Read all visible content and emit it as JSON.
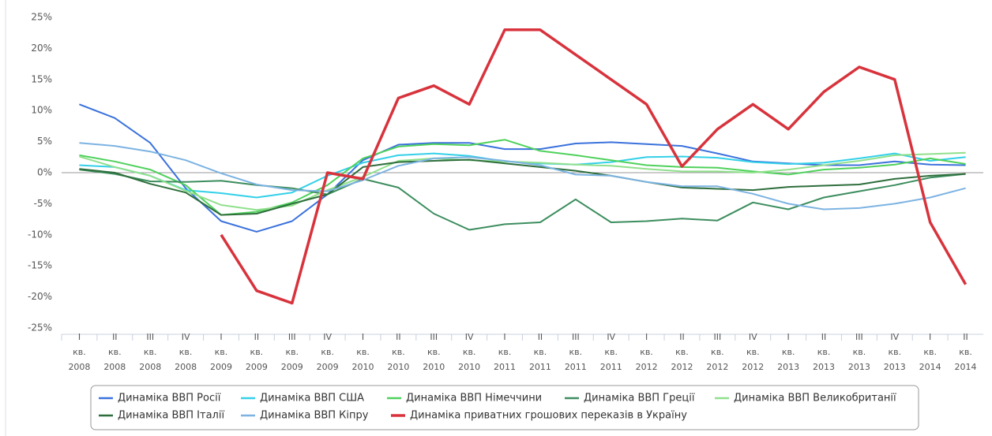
{
  "chart_data": {
    "type": "line",
    "categories": [
      [
        "I",
        "кв.",
        "2008"
      ],
      [
        "II",
        "кв.",
        "2008"
      ],
      [
        "III",
        "кв.",
        "2008"
      ],
      [
        "IV",
        "кв.",
        "2008"
      ],
      [
        "I",
        "кв.",
        "2009"
      ],
      [
        "II",
        "кв.",
        "2009"
      ],
      [
        "III",
        "кв.",
        "2009"
      ],
      [
        "IV",
        "кв.",
        "2009"
      ],
      [
        "I",
        "кв.",
        "2010"
      ],
      [
        "II",
        "кв.",
        "2010"
      ],
      [
        "III",
        "кв.",
        "2010"
      ],
      [
        "IV",
        "кв.",
        "2010"
      ],
      [
        "I",
        "кв.",
        "2011"
      ],
      [
        "II",
        "кв.",
        "2011"
      ],
      [
        "III",
        "кв.",
        "2011"
      ],
      [
        "IV",
        "кв.",
        "2011"
      ],
      [
        "I",
        "кв.",
        "2012"
      ],
      [
        "II",
        "кв.",
        "2012"
      ],
      [
        "III",
        "кв.",
        "2012"
      ],
      [
        "IV",
        "кв.",
        "2012"
      ],
      [
        "I",
        "кв.",
        "2013"
      ],
      [
        "II",
        "кв.",
        "2013"
      ],
      [
        "III",
        "кв.",
        "2013"
      ],
      [
        "IV",
        "кв.",
        "2013"
      ],
      [
        "I",
        "кв.",
        "2014"
      ],
      [
        "II",
        "кв.",
        "2014"
      ]
    ],
    "series": [
      {
        "name": "Динаміка ВВП Росії",
        "color": "#3b72dc",
        "values": [
          11,
          8.8,
          4.8,
          -2.5,
          -7.8,
          -9.5,
          -7.8,
          -3.5,
          2,
          4.5,
          4.8,
          4.8,
          3.8,
          3.8,
          4.7,
          4.9,
          4.6,
          4.3,
          3.1,
          1.8,
          1.5,
          1.2,
          1.2,
          1.8,
          1.3,
          1.2
        ]
      },
      {
        "name": "Динаміка ВВП США",
        "color": "#33d0e8",
        "values": [
          1.2,
          0.9,
          -0.5,
          -2.8,
          -3.3,
          -4,
          -3.2,
          -0.5,
          1.6,
          2.8,
          3.1,
          2.7,
          1.8,
          1.5,
          1.3,
          1.7,
          2.5,
          2.6,
          2.4,
          1.7,
          1.4,
          1.6,
          2.3,
          3.1,
          1.9,
          2.5
        ]
      },
      {
        "name": "Динаміка ВВП Німеччини",
        "color": "#4fd15c",
        "values": [
          2.8,
          1.8,
          0.5,
          -2,
          -6.8,
          -6.3,
          -4.8,
          -2,
          2.3,
          4.2,
          4.6,
          4.4,
          5.3,
          3.5,
          2.8,
          2,
          1.2,
          0.9,
          0.8,
          0.2,
          -0.3,
          0.5,
          0.8,
          1.3,
          2.3,
          1.4
        ]
      },
      {
        "name": "Динаміка ВВП Греції",
        "color": "#3c8d5e",
        "values": [
          0.5,
          -0.2,
          -1.4,
          -1.5,
          -1.3,
          -2,
          -2.5,
          -3.5,
          -1,
          -2.4,
          -6.6,
          -9.2,
          -8.3,
          -8,
          -4.3,
          -8,
          -7.8,
          -7.4,
          -7.7,
          -4.8,
          -5.9,
          -4,
          -3,
          -2,
          -0.8,
          -0.2
        ]
      },
      {
        "name": "Динаміка ВВП Великобританії",
        "color": "#90e08c",
        "values": [
          2.6,
          0.9,
          -0.5,
          -2.9,
          -5.2,
          -6,
          -5.3,
          -2.8,
          -0.7,
          1.9,
          2.3,
          2,
          1.8,
          1.6,
          1.3,
          1.1,
          0.6,
          0.2,
          0.2,
          0,
          0.5,
          1.2,
          1.9,
          2.8,
          3,
          3.2
        ]
      },
      {
        "name": "Динаміка ВВП Італії",
        "color": "#2e6e3c",
        "values": [
          0.6,
          0,
          -1.8,
          -3.2,
          -6.8,
          -6.6,
          -5,
          -3.5,
          0.9,
          1.7,
          1.9,
          2.1,
          1.5,
          0.9,
          0.3,
          -0.5,
          -1.5,
          -2.4,
          -2.6,
          -2.8,
          -2.3,
          -2.1,
          -1.9,
          -1,
          -0.5,
          -0.2
        ]
      },
      {
        "name": "Динаміка ВВП Кіпру",
        "color": "#7cb3e2",
        "values": [
          4.8,
          4.3,
          3.4,
          2,
          -0.1,
          -1.9,
          -2.8,
          -3,
          -1.2,
          1.1,
          2.3,
          2.5,
          1.9,
          1.2,
          -0.3,
          -0.5,
          -1.5,
          -2.2,
          -2.2,
          -3.4,
          -5,
          -5.9,
          -5.7,
          -5,
          -4,
          -2.5
        ]
      },
      {
        "name": "Динаміка приватних грошових переказів в Україну",
        "color": "#d8333c",
        "values": [
          null,
          null,
          null,
          null,
          -10,
          -19,
          -21,
          0,
          -1,
          12,
          14,
          11,
          23,
          23,
          19,
          15,
          11,
          1,
          7,
          11,
          7,
          13,
          17,
          15,
          -8,
          -18
        ]
      }
    ],
    "ylim": [
      -25,
      25
    ],
    "yticks": [
      {
        "value": 25,
        "label": "25%"
      },
      {
        "value": 20,
        "label": "20%"
      },
      {
        "value": 15,
        "label": "15%"
      },
      {
        "value": 10,
        "label": "10%"
      },
      {
        "value": 5,
        "label": "5%"
      },
      {
        "value": 0,
        "label": "0%"
      },
      {
        "value": -5,
        "label": "-5%"
      },
      {
        "value": -10,
        "label": "-10%"
      },
      {
        "value": -15,
        "label": "-15%"
      },
      {
        "value": -20,
        "label": "-20%"
      },
      {
        "value": -25,
        "label": "-25%"
      }
    ],
    "grid": false,
    "legend": "bottom"
  }
}
